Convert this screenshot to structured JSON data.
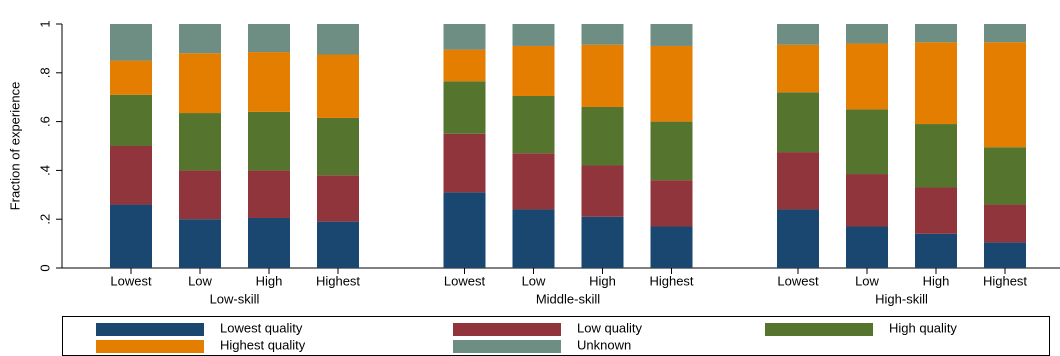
{
  "chart_data": {
    "type": "stacked-bar",
    "y_label": "Fraction of experience",
    "groups": [
      "Low-skill",
      "Middle-skill",
      "High-skill"
    ],
    "categories": [
      "Lowest",
      "Low",
      "High",
      "Highest",
      "Lowest",
      "Low",
      "High",
      "Highest",
      "Lowest",
      "Low",
      "High",
      "Highest"
    ],
    "series": [
      {
        "name": "Lowest quality",
        "color": "#1a476f",
        "values": [
          0.26,
          0.2,
          0.205,
          0.19,
          0.31,
          0.24,
          0.21,
          0.17,
          0.24,
          0.17,
          0.14,
          0.105
        ]
      },
      {
        "name": "Low quality",
        "color": "#90353b",
        "values": [
          0.24,
          0.2,
          0.195,
          0.19,
          0.24,
          0.23,
          0.21,
          0.19,
          0.235,
          0.215,
          0.19,
          0.155
        ]
      },
      {
        "name": "High quality",
        "color": "#55752f",
        "values": [
          0.21,
          0.235,
          0.24,
          0.235,
          0.215,
          0.235,
          0.24,
          0.24,
          0.245,
          0.265,
          0.26,
          0.235
        ]
      },
      {
        "name": "Highest quality",
        "color": "#e37e00",
        "values": [
          0.14,
          0.245,
          0.245,
          0.26,
          0.13,
          0.205,
          0.255,
          0.31,
          0.195,
          0.27,
          0.335,
          0.43
        ]
      },
      {
        "name": "Unknown",
        "color": "#6e8e84",
        "values": [
          0.15,
          0.12,
          0.115,
          0.125,
          0.105,
          0.09,
          0.085,
          0.09,
          0.085,
          0.08,
          0.075,
          0.075
        ]
      }
    ],
    "ylim": [
      0,
      1
    ],
    "yticks": [
      0,
      {
        "value": 0.2,
        "label": ".2"
      },
      {
        "value": 0.4,
        "label": ".4"
      },
      {
        "value": 0.6,
        "label": ".6"
      },
      {
        "value": 0.8,
        "label": ".8"
      },
      1
    ],
    "grid": false
  }
}
